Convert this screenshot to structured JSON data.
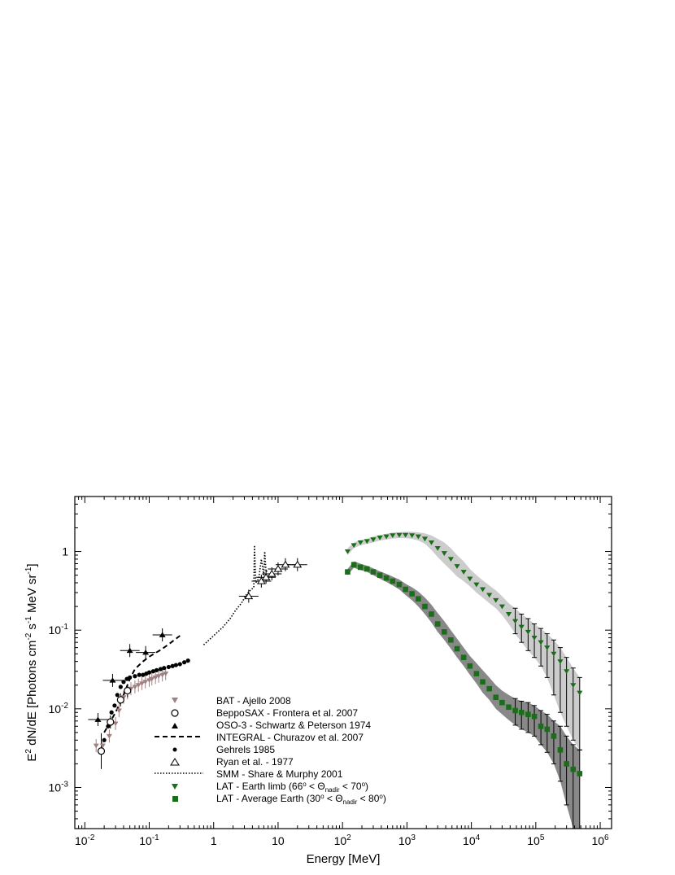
{
  "chart_data": {
    "type": "scatter",
    "x_scale": "log",
    "y_scale": "log",
    "xlim": [
      0.007,
      1500000
    ],
    "ylim": [
      0.0003,
      5
    ],
    "xlabel": "Energy [MeV]",
    "ylabel_parts": {
      "a": "E",
      "b": "2",
      "c": " dN/dE [Photons cm",
      "d": "-2",
      "e": " s",
      "f": "-1",
      "g": " MeV sr",
      "h": "-1",
      "i": "]"
    },
    "x_ticks": [
      {
        "value": 0.01,
        "base": "10",
        "exp": "-2"
      },
      {
        "value": 0.1,
        "base": "10",
        "exp": "-1"
      },
      {
        "value": 1,
        "base": "1",
        "exp": ""
      },
      {
        "value": 10,
        "base": "10",
        "exp": ""
      },
      {
        "value": 100,
        "base": "10",
        "exp": "2"
      },
      {
        "value": 1000,
        "base": "10",
        "exp": "3"
      },
      {
        "value": 10000,
        "base": "10",
        "exp": "4"
      },
      {
        "value": 100000,
        "base": "10",
        "exp": "5"
      },
      {
        "value": 1000000,
        "base": "10",
        "exp": "6"
      }
    ],
    "y_ticks": [
      {
        "value": 0.001,
        "base": "10",
        "exp": "-3"
      },
      {
        "value": 0.01,
        "base": "10",
        "exp": "-2"
      },
      {
        "value": 0.1,
        "base": "10",
        "exp": "-1"
      },
      {
        "value": 1,
        "base": "1",
        "exp": ""
      }
    ],
    "colors": {
      "bat": "#a08080",
      "lat": "#1a6e1a",
      "band_limb": "#cccccc",
      "band_avg": "#888888"
    },
    "series": [
      {
        "name": "BAT - Ajello 2008",
        "marker": "triangle-down",
        "color": "#a08080",
        "x": [
          0.015,
          0.019,
          0.024,
          0.03,
          0.034,
          0.04,
          0.046,
          0.052,
          0.06,
          0.068,
          0.077,
          0.087,
          0.1,
          0.11,
          0.125,
          0.14,
          0.16,
          0.18
        ],
        "y": [
          0.0034,
          0.0034,
          0.0045,
          0.0065,
          0.0095,
          0.014,
          0.016,
          0.018,
          0.019,
          0.02,
          0.021,
          0.022,
          0.023,
          0.024,
          0.025,
          0.026,
          0.027,
          0.028
        ]
      },
      {
        "name": "BeppoSAX - Frontera et al. 2007",
        "marker": "circle-open",
        "color": "#000000",
        "x": [
          0.018,
          0.025,
          0.036,
          0.046
        ],
        "y": [
          0.0029,
          0.0068,
          0.013,
          0.017
        ]
      },
      {
        "name": "OSO-3 - Schwartz & Peterson 1974",
        "marker": "triangle-up",
        "color": "#000000",
        "x": [
          0.016,
          0.027,
          0.05,
          0.088,
          0.16
        ],
        "y": [
          0.0073,
          0.023,
          0.055,
          0.052,
          0.087
        ]
      },
      {
        "name": "INTEGRAL - Churazov et al. 2007",
        "marker": "dashed-line",
        "color": "#000000",
        "x": [
          0.02,
          0.03,
          0.04,
          0.05,
          0.06,
          0.08,
          0.1,
          0.15,
          0.2,
          0.3
        ],
        "y": [
          0.005,
          0.009,
          0.015,
          0.024,
          0.032,
          0.04,
          0.046,
          0.056,
          0.066,
          0.085
        ]
      },
      {
        "name": "Gehrels 1985",
        "marker": "circle-filled",
        "color": "#000000",
        "x": [
          0.02,
          0.023,
          0.026,
          0.029,
          0.032,
          0.036,
          0.04,
          0.045,
          0.05,
          0.06,
          0.07,
          0.08,
          0.09,
          0.1,
          0.115,
          0.13,
          0.15,
          0.17,
          0.2,
          0.23,
          0.26,
          0.3,
          0.35,
          0.4
        ],
        "y": [
          0.004,
          0.006,
          0.009,
          0.011,
          0.015,
          0.019,
          0.022,
          0.024,
          0.025,
          0.026,
          0.027,
          0.027,
          0.028,
          0.029,
          0.03,
          0.031,
          0.032,
          0.033,
          0.034,
          0.035,
          0.036,
          0.037,
          0.039,
          0.041
        ]
      },
      {
        "name": "Ryan et al. - 1977",
        "marker": "triangle-open",
        "color": "#000000",
        "x": [
          3.5,
          5.5,
          6.5,
          8,
          10,
          13,
          20
        ],
        "y": [
          0.27,
          0.42,
          0.47,
          0.52,
          0.6,
          0.68,
          0.68
        ]
      },
      {
        "name": "SMM - Share & Murphy 2001",
        "marker": "dotted-line",
        "color": "#000000",
        "x": [
          0.7,
          1,
          1.4,
          1.8,
          2.2,
          2.7,
          3.2,
          3.7,
          4.2,
          4.3,
          4.5,
          5,
          5.5,
          6,
          6.2,
          6.5,
          7
        ],
        "y": [
          0.065,
          0.085,
          0.11,
          0.14,
          0.18,
          0.22,
          0.28,
          0.32,
          0.35,
          1.2,
          0.4,
          0.45,
          0.8,
          0.5,
          1.0,
          0.55,
          0.6
        ]
      },
      {
        "name_parts": {
          "a": "LAT - Earth limb (66",
          "b": "o",
          "c": " < Θ",
          "d": "nadir",
          "e": " < 70",
          "f": "o",
          "g": ")"
        },
        "marker": "triangle-down-filled",
        "color": "#1a6e1a",
        "x": [
          120,
          150,
          190,
          240,
          300,
          380,
          480,
          600,
          760,
          950,
          1200,
          1500,
          1900,
          2400,
          3000,
          3800,
          4800,
          6000,
          7600,
          9500,
          12000,
          15000,
          19000,
          24000,
          30000,
          38000,
          48000,
          60000,
          76000,
          95000,
          120000,
          150000,
          190000,
          240000,
          300000,
          380000,
          480000
        ],
        "y": [
          1.0,
          1.2,
          1.3,
          1.35,
          1.42,
          1.5,
          1.55,
          1.6,
          1.62,
          1.62,
          1.6,
          1.55,
          1.45,
          1.3,
          1.1,
          0.95,
          0.8,
          0.65,
          0.55,
          0.45,
          0.38,
          0.33,
          0.28,
          0.24,
          0.2,
          0.16,
          0.13,
          0.11,
          0.095,
          0.08,
          0.07,
          0.06,
          0.05,
          0.04,
          0.03,
          0.02,
          0.016
        ],
        "band_lo": [
          0.9,
          1.1,
          1.2,
          1.25,
          1.3,
          1.38,
          1.42,
          1.46,
          1.48,
          1.48,
          1.45,
          1.38,
          1.25,
          1.05,
          0.85,
          0.7,
          0.58,
          0.48,
          0.42,
          0.36,
          0.3,
          0.26,
          0.22,
          0.19,
          0.155,
          0.12,
          0.09,
          0.07,
          0.055,
          0.045,
          0.035,
          0.025,
          0.015,
          0.009,
          0.006,
          0.004,
          0.003
        ],
        "band_hi": [
          1.1,
          1.3,
          1.4,
          1.45,
          1.55,
          1.62,
          1.68,
          1.74,
          1.76,
          1.78,
          1.78,
          1.75,
          1.7,
          1.6,
          1.45,
          1.3,
          1.1,
          0.9,
          0.75,
          0.6,
          0.5,
          0.43,
          0.37,
          0.32,
          0.27,
          0.22,
          0.19,
          0.16,
          0.14,
          0.12,
          0.105,
          0.09,
          0.075,
          0.06,
          0.045,
          0.033,
          0.025
        ]
      },
      {
        "name_parts": {
          "a": "LAT - Average Earth (30",
          "b": "o",
          "c": " < Θ",
          "d": "nadir",
          "e": " < 80",
          "f": "o",
          "g": ")"
        },
        "marker": "square-filled",
        "color": "#1a6e1a",
        "x": [
          120,
          150,
          190,
          240,
          300,
          380,
          480,
          600,
          760,
          950,
          1200,
          1500,
          1900,
          2400,
          3000,
          3800,
          4800,
          6000,
          7600,
          9500,
          12000,
          15000,
          19000,
          24000,
          30000,
          38000,
          48000,
          60000,
          76000,
          95000,
          120000,
          150000,
          190000,
          240000,
          300000,
          380000,
          480000
        ],
        "y": [
          0.55,
          0.68,
          0.63,
          0.6,
          0.55,
          0.5,
          0.46,
          0.42,
          0.38,
          0.33,
          0.29,
          0.25,
          0.2,
          0.16,
          0.12,
          0.095,
          0.075,
          0.058,
          0.045,
          0.035,
          0.028,
          0.022,
          0.018,
          0.014,
          0.012,
          0.0105,
          0.0095,
          0.009,
          0.0085,
          0.008,
          0.006,
          0.0055,
          0.0045,
          0.003,
          0.002,
          0.0017,
          0.0015
        ],
        "band_lo": [
          0.5,
          0.62,
          0.58,
          0.55,
          0.5,
          0.45,
          0.41,
          0.37,
          0.33,
          0.28,
          0.24,
          0.2,
          0.16,
          0.125,
          0.095,
          0.075,
          0.058,
          0.045,
          0.035,
          0.027,
          0.021,
          0.016,
          0.013,
          0.01,
          0.0085,
          0.0072,
          0.0062,
          0.0055,
          0.005,
          0.0045,
          0.0035,
          0.0028,
          0.002,
          0.0012,
          0.0006,
          0.0003,
          0.0003
        ],
        "band_hi": [
          0.6,
          0.75,
          0.7,
          0.66,
          0.61,
          0.56,
          0.52,
          0.48,
          0.44,
          0.39,
          0.35,
          0.31,
          0.26,
          0.21,
          0.165,
          0.13,
          0.1,
          0.078,
          0.06,
          0.047,
          0.038,
          0.031,
          0.025,
          0.02,
          0.017,
          0.015,
          0.0135,
          0.0125,
          0.012,
          0.011,
          0.0095,
          0.0085,
          0.007,
          0.006,
          0.0045,
          0.0035,
          0.003
        ]
      }
    ],
    "legend_position": "lower-left"
  }
}
